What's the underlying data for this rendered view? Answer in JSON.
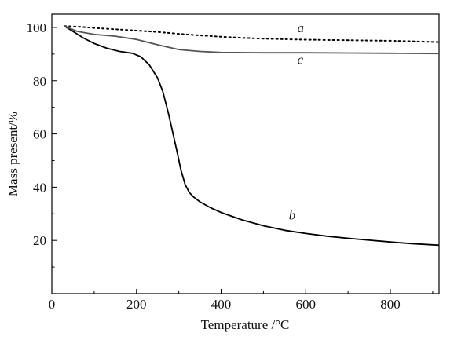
{
  "chart_data": {
    "type": "line",
    "title": "",
    "xlabel": "Temperature /°C",
    "ylabel": "Mass present/%",
    "xlim": [
      0,
      915
    ],
    "ylim": [
      0,
      105
    ],
    "x_ticks": [
      0,
      200,
      400,
      600,
      800
    ],
    "x_minor_ticks": [
      100,
      300,
      500,
      700,
      900
    ],
    "y_ticks": [
      20,
      40,
      60,
      80,
      100
    ],
    "y_minor_ticks": [
      10,
      30,
      50,
      70,
      90
    ],
    "grid": false,
    "series": [
      {
        "name": "a",
        "style": "dotted",
        "color": "#000000",
        "x": [
          30,
          60,
          100,
          150,
          200,
          250,
          300,
          350,
          400,
          450,
          500,
          550,
          600,
          650,
          700,
          750,
          800,
          850,
          915
        ],
        "y": [
          100.5,
          100.3,
          99.8,
          99.3,
          98.8,
          98.3,
          97.6,
          97.0,
          96.5,
          96.1,
          95.8,
          95.6,
          95.4,
          95.3,
          95.2,
          95.1,
          95.0,
          94.8,
          94.5
        ]
      },
      {
        "name": "b",
        "style": "solid",
        "color": "#000000",
        "x": [
          30,
          50,
          75,
          100,
          130,
          160,
          190,
          210,
          230,
          250,
          262,
          275,
          285,
          295,
          305,
          315,
          325,
          335,
          350,
          375,
          400,
          450,
          500,
          550,
          600,
          650,
          700,
          750,
          800,
          850,
          915
        ],
        "y": [
          100.5,
          98.5,
          96.0,
          94.0,
          92.2,
          91.0,
          90.3,
          89.0,
          86.0,
          81.0,
          76.0,
          68.0,
          61.0,
          54.0,
          46.5,
          41.0,
          38.0,
          36.3,
          34.5,
          32.3,
          30.5,
          27.7,
          25.5,
          23.8,
          22.6,
          21.6,
          20.8,
          20.1,
          19.4,
          18.8,
          18.2
        ]
      },
      {
        "name": "c",
        "style": "solid",
        "color": "#555555",
        "x": [
          30,
          60,
          100,
          150,
          200,
          250,
          300,
          350,
          400,
          500,
          600,
          700,
          800,
          915
        ],
        "y": [
          100.5,
          98.5,
          97.4,
          96.7,
          95.5,
          93.5,
          91.7,
          91.0,
          90.6,
          90.5,
          90.5,
          90.4,
          90.3,
          90.2
        ]
      }
    ],
    "annotations": [
      {
        "text": "a",
        "x": 580,
        "y": 98.2
      },
      {
        "text": "c",
        "x": 580,
        "y": 86.3
      },
      {
        "text": "b",
        "x": 560,
        "y": 27.8
      }
    ]
  }
}
